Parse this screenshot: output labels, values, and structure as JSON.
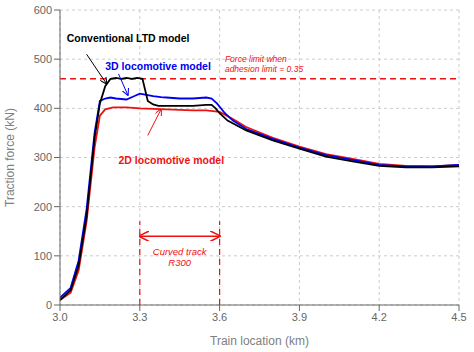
{
  "chart_data": {
    "type": "line",
    "xlabel": "Train location (km)",
    "ylabel": "Traction force (kN)",
    "xlim": [
      3.0,
      4.5
    ],
    "ylim": [
      0,
      600
    ],
    "xticks": [
      {
        "value": 3.0,
        "label": "3.0"
      },
      3.3,
      3.6,
      3.9,
      4.2,
      4.5
    ],
    "yticks": [
      0,
      100,
      200,
      300,
      400,
      500,
      600
    ],
    "grid": true,
    "series": [
      {
        "name": "2D locomotive model",
        "color": "#EE1111",
        "x": [
          3.0,
          3.04,
          3.07,
          3.1,
          3.13,
          3.15,
          3.17,
          3.2,
          3.25,
          3.3,
          3.35,
          3.4,
          3.45,
          3.5,
          3.55,
          3.6,
          3.65,
          3.7,
          3.8,
          3.9,
          4.0,
          4.1,
          4.2,
          4.3,
          4.4,
          4.5
        ],
        "values": [
          10,
          25,
          70,
          170,
          320,
          385,
          398,
          402,
          402,
          400,
          399,
          398,
          397,
          396,
          396,
          393,
          378,
          362,
          340,
          322,
          307,
          297,
          287,
          283,
          282,
          285
        ]
      },
      {
        "name": "3D locomotive model",
        "color": "#0000EE",
        "x": [
          3.0,
          3.04,
          3.07,
          3.1,
          3.13,
          3.15,
          3.17,
          3.19,
          3.21,
          3.25,
          3.28,
          3.3,
          3.32,
          3.35,
          3.38,
          3.4,
          3.45,
          3.5,
          3.55,
          3.57,
          3.59,
          3.62,
          3.65,
          3.7,
          3.8,
          3.9,
          4.0,
          4.1,
          4.2,
          4.3,
          4.4,
          4.5
        ],
        "values": [
          15,
          35,
          90,
          195,
          350,
          415,
          420,
          422,
          420,
          418,
          425,
          430,
          428,
          425,
          423,
          422,
          420,
          420,
          422,
          420,
          410,
          390,
          375,
          358,
          338,
          320,
          305,
          295,
          285,
          282,
          282,
          285
        ]
      },
      {
        "name": "Conventional LTD model",
        "color": "#000000",
        "x": [
          3.0,
          3.04,
          3.07,
          3.1,
          3.13,
          3.15,
          3.17,
          3.19,
          3.21,
          3.23,
          3.25,
          3.27,
          3.29,
          3.31,
          3.33,
          3.35,
          3.37,
          3.4,
          3.45,
          3.5,
          3.55,
          3.57,
          3.585,
          3.6,
          3.63,
          3.7,
          3.8,
          3.9,
          4.0,
          4.1,
          4.2,
          4.3,
          4.4,
          4.5
        ],
        "values": [
          10,
          30,
          80,
          180,
          340,
          410,
          445,
          460,
          462,
          460,
          462,
          460,
          462,
          460,
          415,
          408,
          405,
          405,
          405,
          405,
          407,
          407,
          400,
          390,
          375,
          355,
          335,
          318,
          302,
          292,
          283,
          280,
          280,
          282
        ]
      }
    ],
    "force_limit": {
      "y": 460,
      "color": "#EE1111",
      "line_style": "dashed",
      "label": "Force limit when\nadhesion limit = 0.35"
    },
    "curved_track": {
      "x1": 3.3,
      "x2": 3.6,
      "y": 140,
      "color": "#EE1111",
      "line_style": "dashed",
      "label": "Curved track\nR300"
    }
  }
}
